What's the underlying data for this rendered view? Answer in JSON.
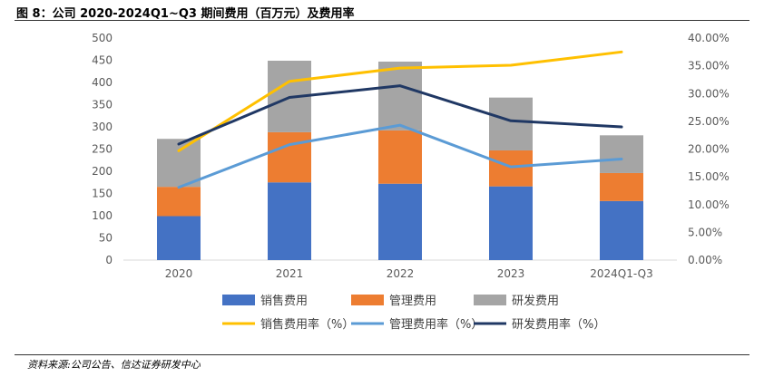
{
  "header": {
    "title": "图 8：公司 2020-2024Q1~Q3 期间费用（百万元）及费用率"
  },
  "footer": {
    "source": "资料来源:公司公告、信达证券研发中心"
  },
  "chart_data": {
    "type": "bar",
    "stacked": true,
    "categories": [
      "2020",
      "2021",
      "2022",
      "2023",
      "2024Q1-Q3"
    ],
    "y_left": {
      "min": 0,
      "max": 500,
      "step": 50,
      "ticks": [
        "0",
        "50",
        "100",
        "150",
        "200",
        "250",
        "300",
        "350",
        "400",
        "450",
        "500"
      ]
    },
    "y_right": {
      "min": 0,
      "max": 40,
      "step": 5,
      "ticks": [
        "0.00%",
        "5.00%",
        "10.00%",
        "15.00%",
        "20.00%",
        "25.00%",
        "30.00%",
        "35.00%",
        "40.00%"
      ]
    },
    "bar_series": [
      {
        "name": "销售费用",
        "color": "#4472C4",
        "values": [
          99,
          175,
          172,
          166,
          133
        ]
      },
      {
        "name": "管理费用",
        "color": "#ED7D31",
        "values": [
          66,
          113,
          120,
          81,
          63
        ]
      },
      {
        "name": "研发费用",
        "color": "#A5A5A5",
        "values": [
          108,
          161,
          155,
          119,
          85
        ]
      }
    ],
    "line_series": [
      {
        "name": "销售费用率（%）",
        "color": "#FFC000",
        "axis": "right",
        "values": [
          19.7,
          32.2,
          34.6,
          35.1,
          37.5
        ]
      },
      {
        "name": "管理费用率（%）",
        "color": "#5B9BD5",
        "axis": "right",
        "values": [
          13.1,
          20.8,
          24.3,
          16.8,
          18.2
        ]
      },
      {
        "name": "研发费用率（%）",
        "color": "#203864",
        "axis": "right",
        "values": [
          20.9,
          29.3,
          31.4,
          25.1,
          24.0
        ]
      }
    ]
  }
}
